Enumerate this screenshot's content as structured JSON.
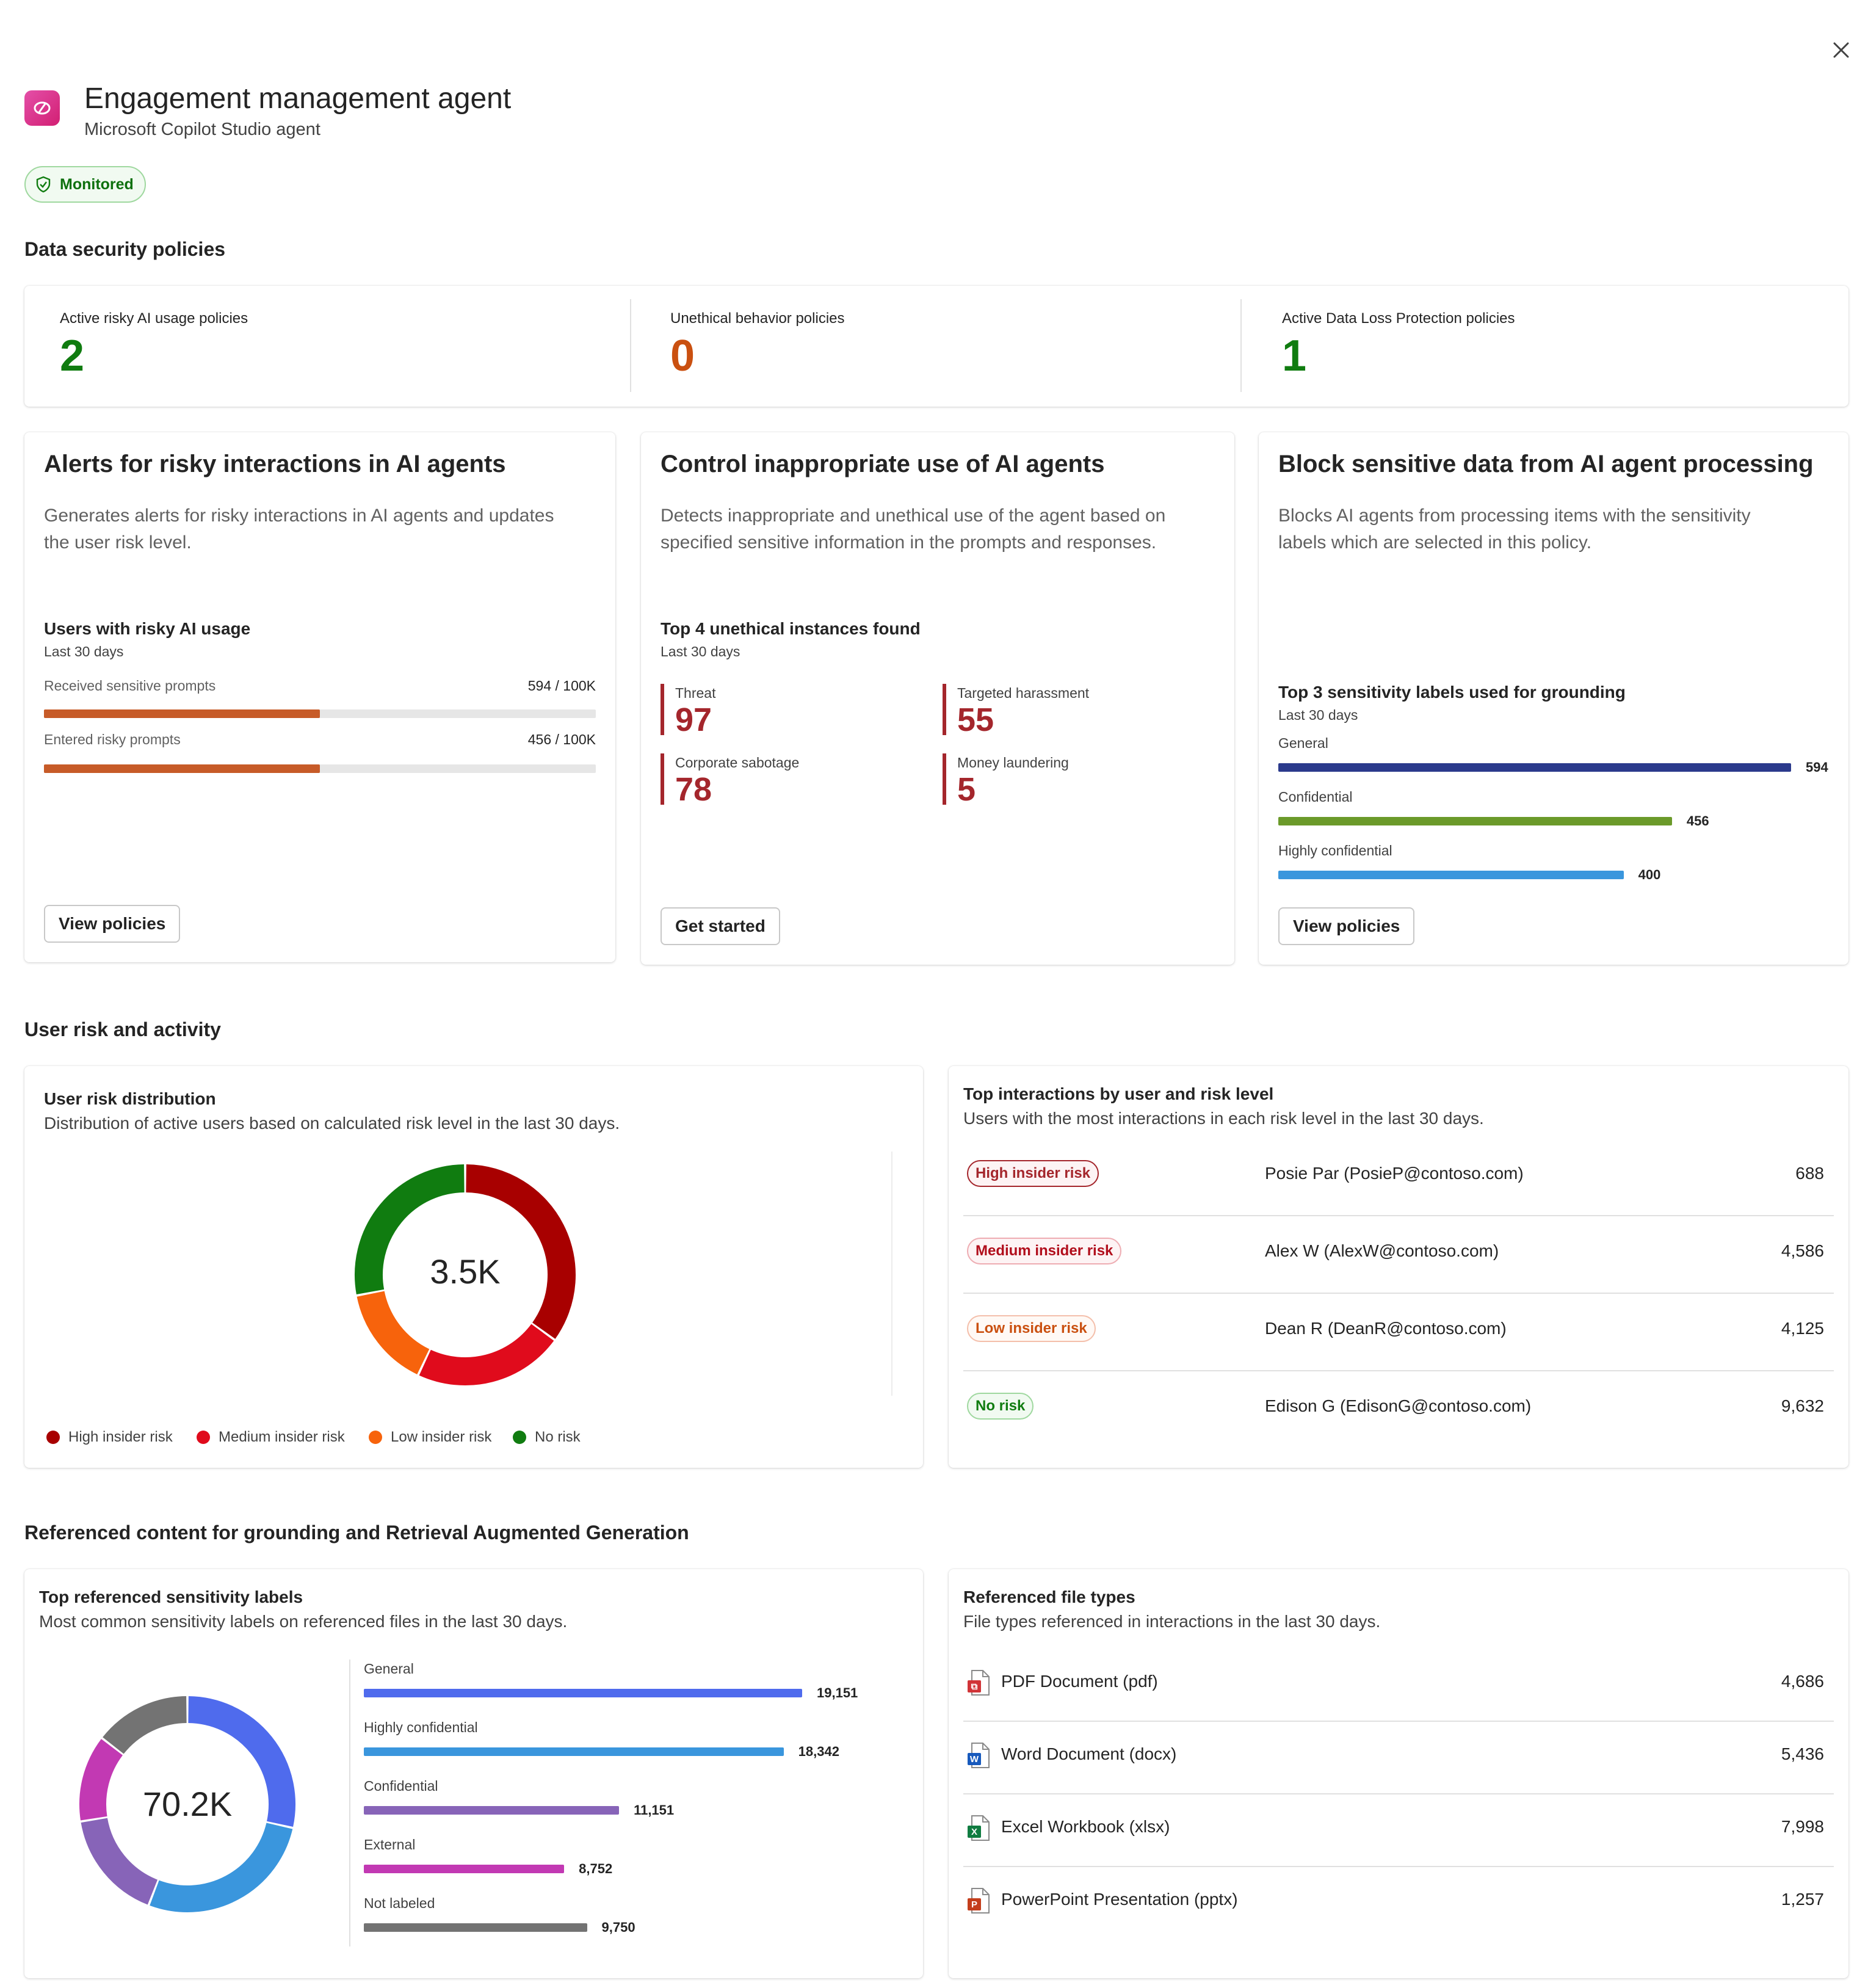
{
  "header": {
    "title": "Engagement management agent",
    "subtitle": "Microsoft Copilot Studio agent",
    "status_badge": "Monitored",
    "close_icon": "close-icon",
    "app_icon": "copilot-studio-icon"
  },
  "data_security": {
    "section_title": "Data security policies",
    "stats": [
      {
        "label": "Active risky AI usage policies",
        "value": "2",
        "color": "#107c10"
      },
      {
        "label": "Unethical behavior policies",
        "value": "0",
        "color": "#ca5010"
      },
      {
        "label": "Active Data Loss Protection policies",
        "value": "1",
        "color": "#107c10"
      }
    ]
  },
  "policy_cards": {
    "alerts": {
      "title": "Alerts for risky interactions in AI agents",
      "description_line1": "Generates alerts for risky interactions in AI agents and updates",
      "description_line2": "the user risk level.",
      "metric_title": "Users with risky AI usage",
      "metric_period": "Last 30 days",
      "bars": [
        {
          "label": "Received sensitive prompts",
          "value_text": "594 / 100K",
          "fraction": 0.5
        },
        {
          "label": "Entered risky prompts",
          "value_text": "456 / 100K",
          "fraction": 0.5
        }
      ],
      "bar_color": "#c75b28",
      "button": "View policies"
    },
    "control": {
      "title": "Control inappropriate use of AI agents",
      "description_line1": "Detects inappropriate and unethical use of the agent based on",
      "description_line2": "specified sensitive information in the prompts and responses.",
      "metric_title": "Top 4 unethical instances found",
      "metric_period": "Last 30 days",
      "instances": [
        {
          "label": "Threat",
          "value": "97"
        },
        {
          "label": "Targeted harassment",
          "value": "55"
        },
        {
          "label": "Corporate sabotage",
          "value": "78"
        },
        {
          "label": "Money laundering",
          "value": "5"
        }
      ],
      "button": "Get started"
    },
    "block": {
      "title": "Block sensitive data from AI agent processing",
      "description_line1": "Blocks AI agents from processing items with the sensitivity",
      "description_line2": "labels which are selected in this policy.",
      "metric_title": "Top 3 sensitivity labels used for grounding",
      "metric_period": "Last 30 days",
      "bars": [
        {
          "label": "General",
          "value": 594,
          "value_text": "594",
          "color": "#2b3a8c"
        },
        {
          "label": "Confidential",
          "value": 456,
          "value_text": "456",
          "color": "#6b9a2a"
        },
        {
          "label": "Highly confidential",
          "value": 400,
          "value_text": "400",
          "color": "#3a96dd"
        }
      ],
      "button": "View policies"
    }
  },
  "user_risk": {
    "section_title": "User risk and activity",
    "distribution": {
      "title": "User risk distribution",
      "subtitle": "Distribution of active users based on calculated risk level in the last 30 days.",
      "center_label": "3.5K",
      "segments": [
        {
          "name": "High insider risk",
          "value": 35,
          "color": "#a80000"
        },
        {
          "name": "Medium insider risk",
          "value": 22,
          "color": "#e00b1c"
        },
        {
          "name": "Low insider risk",
          "value": 15,
          "color": "#f7630c"
        },
        {
          "name": "No risk",
          "value": 28,
          "color": "#107c10"
        }
      ]
    },
    "top_interactions": {
      "title": "Top interactions by user and risk level",
      "subtitle": "Users with the most interactions in each risk level in the last 30 days.",
      "rows": [
        {
          "risk": "High insider risk",
          "user": "Posie Par (PosieP@contoso.com)",
          "count": "688",
          "fg": "#a4262c",
          "border": "#a4262c",
          "bg": "#fdf3f4"
        },
        {
          "risk": "Medium insider risk",
          "user": "Alex W (AlexW@contoso.com)",
          "count": "4,586",
          "fg": "#b10e1c",
          "border": "#eeacb2",
          "bg": "#fdf3f4"
        },
        {
          "risk": "Low insider risk",
          "user": "Dean R (DeanR@contoso.com)",
          "count": "4,125",
          "fg": "#ca5010",
          "border": "#f4bfab",
          "bg": "#fff9f5"
        },
        {
          "risk": "No risk",
          "user": "Edison G (EdisonG@contoso.com)",
          "count": "9,632",
          "fg": "#107c10",
          "border": "#9fd89f",
          "bg": "#f1faf1"
        }
      ]
    }
  },
  "referenced": {
    "section_title": "Referenced content for grounding and Retrieval Augmented Generation",
    "labels": {
      "title": "Top referenced sensitivity labels",
      "subtitle": "Most common sensitivity labels on referenced files in the last 30 days.",
      "center_label": "70.2K",
      "items": [
        {
          "label": "General",
          "value": 19151,
          "value_text": "19,151",
          "color": "#4f6bed"
        },
        {
          "label": "Highly confidential",
          "value": 18342,
          "value_text": "18,342",
          "color": "#3a96dd"
        },
        {
          "label": "Confidential",
          "value": 11151,
          "value_text": "11,151",
          "color": "#8764b8"
        },
        {
          "label": "External",
          "value": 8752,
          "value_text": "8,752",
          "color": "#c239b3"
        },
        {
          "label": "Not labeled",
          "value": 9750,
          "value_text": "9,750",
          "color": "#737373"
        }
      ]
    },
    "file_types": {
      "title": "Referenced file types",
      "subtitle": "File types referenced in interactions in the last 30 days.",
      "rows": [
        {
          "name": "PDF Document (pdf)",
          "count": "4,686",
          "icon": "pdf-file-icon",
          "color": "#d13438",
          "glyph": "⧉"
        },
        {
          "name": "Word Document (docx)",
          "count": "5,436",
          "icon": "word-file-icon",
          "color": "#185abd",
          "glyph": "W"
        },
        {
          "name": "Excel Workbook (xlsx)",
          "count": "7,998",
          "icon": "excel-file-icon",
          "color": "#107c41",
          "glyph": "X"
        },
        {
          "name": "PowerPoint Presentation (pptx)",
          "count": "1,257",
          "icon": "powerpoint-file-icon",
          "color": "#c43e1c",
          "glyph": "P"
        }
      ]
    }
  }
}
